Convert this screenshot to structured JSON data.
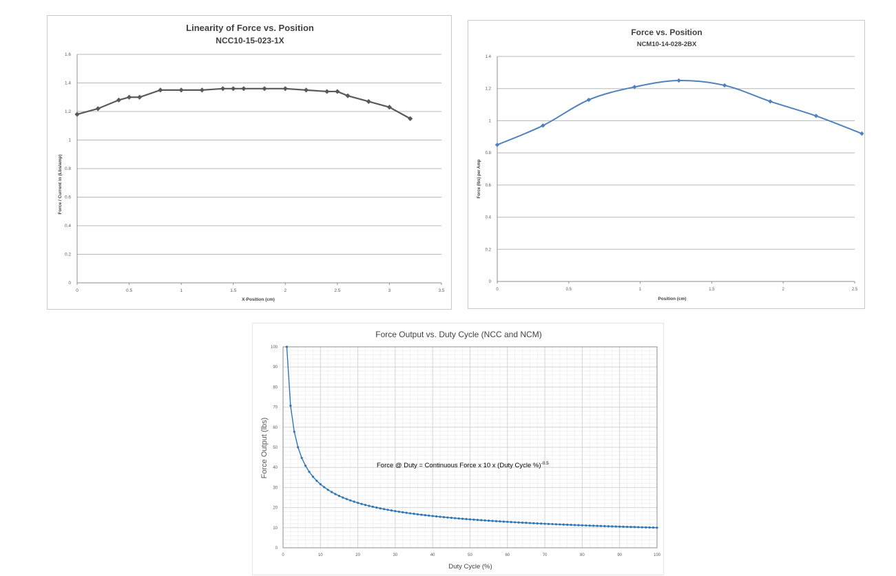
{
  "chart_data": [
    {
      "type": "line",
      "title": "Linearity of Force vs. Position",
      "subtitle": "NCC10-15-023-1X",
      "xlabel": "X-Position (cm)",
      "ylabel": "Force / Current in (Lbs/amp)",
      "xlim": [
        0,
        3.5
      ],
      "ylim": [
        0,
        1.6
      ],
      "xticks": [
        "0",
        "0.5",
        "1",
        "1.5",
        "2",
        "2.5",
        "3",
        "3.5"
      ],
      "yticks": [
        "0",
        "0.2",
        "0.4",
        "0.6",
        "0.8",
        "1",
        "1.2",
        "1.4",
        "1.6"
      ],
      "grid": "horizontal",
      "legend": "none",
      "color": "#595959",
      "marker": "diamond",
      "x": [
        0,
        0.2,
        0.4,
        0.5,
        0.6,
        0.8,
        1.0,
        1.2,
        1.4,
        1.5,
        1.6,
        1.8,
        2.0,
        2.2,
        2.4,
        2.5,
        2.6,
        2.8,
        3.0,
        3.2
      ],
      "y": [
        1.18,
        1.22,
        1.28,
        1.3,
        1.3,
        1.35,
        1.35,
        1.35,
        1.36,
        1.36,
        1.36,
        1.36,
        1.36,
        1.35,
        1.34,
        1.34,
        1.31,
        1.27,
        1.23,
        1.15
      ]
    },
    {
      "type": "line",
      "title": "Force vs. Position",
      "subtitle": "NCM10-14-028-2BX",
      "xlabel": "Position (cm)",
      "ylabel": "Force (lbs) per Amp",
      "xlim": [
        0,
        2.5
      ],
      "ylim": [
        0,
        1.4
      ],
      "xticks": [
        "0",
        "0.5",
        "1",
        "1.5",
        "2",
        "2.5"
      ],
      "yticks": [
        "0",
        "0.2",
        "0.4",
        "0.6",
        "0.8",
        "1",
        "1.2",
        "1.4"
      ],
      "grid": "horizontal",
      "legend": "none",
      "color": "#4f81bd",
      "marker": "diamond",
      "smooth": true,
      "x": [
        0,
        0.32,
        0.64,
        0.96,
        1.27,
        1.59,
        1.91,
        2.23,
        2.55
      ],
      "y": [
        0.85,
        0.97,
        1.13,
        1.21,
        1.25,
        1.22,
        1.12,
        1.03,
        0.92
      ]
    },
    {
      "type": "line",
      "title": "Force Output vs. Duty Cycle (NCC and NCM)",
      "xlabel": "Duty Cycle (%)",
      "ylabel": "Force Output (lbs)",
      "xlim": [
        0,
        100
      ],
      "ylim": [
        0,
        100
      ],
      "xticks": [
        "0",
        "10",
        "20",
        "30",
        "40",
        "50",
        "60",
        "70",
        "80",
        "90",
        "100"
      ],
      "yticks": [
        "0",
        "10",
        "20",
        "30",
        "40",
        "50",
        "60",
        "70",
        "80",
        "90",
        "100"
      ],
      "grid": "major and minor",
      "legend": "none",
      "color": "#2e75b6",
      "marker": "circle",
      "series_rule": "y = 100 * x^-0.5 for x = 1..100",
      "annotation": {
        "text": "Force @ Duty = Continuous Force x 10 x (Duty Cycle %)",
        "superscript": "-0.5"
      }
    }
  ]
}
